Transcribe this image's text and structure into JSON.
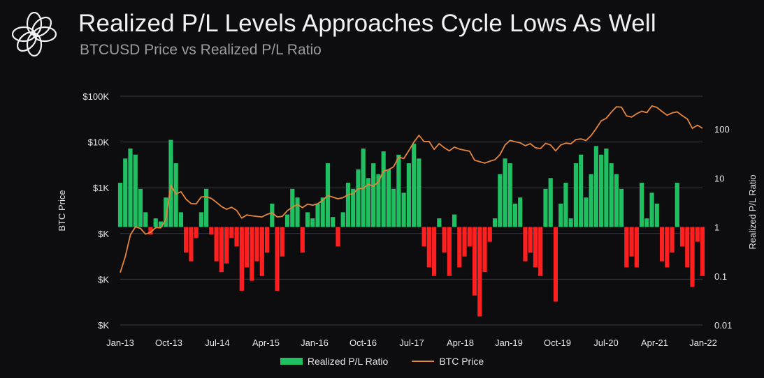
{
  "header": {
    "title": "Realized P/L Levels Approaches Cycle Lows As Well",
    "subtitle": "BTCUSD Price vs Realized P/L Ratio"
  },
  "colors": {
    "background": "#0d0d10",
    "profit": "#1fbf62",
    "loss": "#ff1f1f",
    "price": "#e5853a",
    "grid": "#3a3a40"
  },
  "chart_data": {
    "type": "bar",
    "title": "Realized P/L Levels Approaches Cycle Lows As Well",
    "subtitle": "BTCUSD Price vs Realized P/L Ratio",
    "x_tick_labels": [
      "Jan-13",
      "Oct-13",
      "Jul-14",
      "Apr-15",
      "Jan-16",
      "Oct-16",
      "Jul-17",
      "Apr-18",
      "Jan-19",
      "Oct-19",
      "Jul-20",
      "Apr-21",
      "Jan-22"
    ],
    "x_range": [
      "2013-01",
      "2022-08"
    ],
    "left_axis": {
      "label": "BTC Price",
      "scale": "log",
      "tick_labels": [
        "$100K",
        "$10K",
        "$1K",
        "$K",
        "$K",
        "$K"
      ]
    },
    "right_axis": {
      "label": "Realized P/L Ratio",
      "scale": "log",
      "tick_labels": [
        "100",
        "10",
        "1",
        "0.1",
        "0.01"
      ],
      "ylim": [
        0.01,
        200
      ]
    },
    "grid": true,
    "legend_position": "bottom",
    "series": [
      {
        "name": "Realized P/L Ratio",
        "kind": "bar",
        "axis": "right",
        "color": "#1fbf62",
        "negative_color": "#ff1f1f",
        "points": [
          [
            "2013-01",
            8
          ],
          [
            "2013-02",
            25
          ],
          [
            "2013-03",
            40
          ],
          [
            "2013-04",
            30
          ],
          [
            "2013-05",
            6
          ],
          [
            "2013-06",
            2
          ],
          [
            "2013-07",
            0.7
          ],
          [
            "2013-08",
            1.5
          ],
          [
            "2013-09",
            1.3
          ],
          [
            "2013-10",
            4
          ],
          [
            "2013-11",
            60
          ],
          [
            "2013-12",
            20
          ],
          [
            "2014-01",
            2
          ],
          [
            "2014-02",
            0.3
          ],
          [
            "2014-03",
            0.2
          ],
          [
            "2014-04",
            0.6
          ],
          [
            "2014-05",
            2
          ],
          [
            "2014-06",
            6
          ],
          [
            "2014-07",
            0.7
          ],
          [
            "2014-08",
            0.2
          ],
          [
            "2014-09",
            0.12
          ],
          [
            "2014-10",
            0.18
          ],
          [
            "2014-11",
            0.6
          ],
          [
            "2014-12",
            0.4
          ],
          [
            "2015-01",
            0.05
          ],
          [
            "2015-02",
            0.15
          ],
          [
            "2015-03",
            0.08
          ],
          [
            "2015-04",
            0.2
          ],
          [
            "2015-05",
            0.1
          ],
          [
            "2015-06",
            0.3
          ],
          [
            "2015-07",
            3
          ],
          [
            "2015-08",
            0.05
          ],
          [
            "2015-09",
            0.25
          ],
          [
            "2015-10",
            1.8
          ],
          [
            "2015-11",
            6
          ],
          [
            "2015-12",
            4
          ],
          [
            "2016-01",
            0.3
          ],
          [
            "2016-02",
            2
          ],
          [
            "2016-03",
            1.5
          ],
          [
            "2016-04",
            3
          ],
          [
            "2016-05",
            4
          ],
          [
            "2016-06",
            20
          ],
          [
            "2016-07",
            1.6
          ],
          [
            "2016-08",
            0.4
          ],
          [
            "2016-09",
            2
          ],
          [
            "2016-10",
            8
          ],
          [
            "2016-11",
            6
          ],
          [
            "2016-12",
            15
          ],
          [
            "2017-01",
            40
          ],
          [
            "2017-02",
            10
          ],
          [
            "2017-03",
            20
          ],
          [
            "2017-04",
            12
          ],
          [
            "2017-05",
            35
          ],
          [
            "2017-06",
            15
          ],
          [
            "2017-07",
            6
          ],
          [
            "2017-08",
            30
          ],
          [
            "2017-09",
            5
          ],
          [
            "2017-10",
            20
          ],
          [
            "2017-11",
            50
          ],
          [
            "2017-12",
            25
          ],
          [
            "2018-01",
            0.4
          ],
          [
            "2018-02",
            0.15
          ],
          [
            "2018-03",
            0.1
          ],
          [
            "2018-04",
            1.5
          ],
          [
            "2018-05",
            0.3
          ],
          [
            "2018-06",
            0.1
          ],
          [
            "2018-07",
            1.8
          ],
          [
            "2018-08",
            0.15
          ],
          [
            "2018-09",
            0.25
          ],
          [
            "2018-10",
            0.4
          ],
          [
            "2018-11",
            0.04
          ],
          [
            "2018-12",
            0.015
          ],
          [
            "2019-01",
            0.12
          ],
          [
            "2019-02",
            0.5
          ],
          [
            "2019-03",
            1.5
          ],
          [
            "2019-04",
            12
          ],
          [
            "2019-05",
            25
          ],
          [
            "2019-06",
            20
          ],
          [
            "2019-07",
            3
          ],
          [
            "2019-08",
            4
          ],
          [
            "2019-09",
            0.2
          ],
          [
            "2019-10",
            0.3
          ],
          [
            "2019-11",
            0.15
          ],
          [
            "2019-12",
            0.1
          ],
          [
            "2020-01",
            6
          ],
          [
            "2020-02",
            10
          ],
          [
            "2020-03",
            0.03
          ],
          [
            "2020-04",
            3
          ],
          [
            "2020-05",
            8
          ],
          [
            "2020-06",
            1.5
          ],
          [
            "2020-07",
            20
          ],
          [
            "2020-08",
            30
          ],
          [
            "2020-09",
            4
          ],
          [
            "2020-10",
            12
          ],
          [
            "2020-11",
            45
          ],
          [
            "2020-12",
            30
          ],
          [
            "2021-01",
            40
          ],
          [
            "2021-02",
            20
          ],
          [
            "2021-03",
            12
          ],
          [
            "2021-04",
            6
          ],
          [
            "2021-05",
            0.15
          ],
          [
            "2021-06",
            0.25
          ],
          [
            "2021-07",
            0.15
          ],
          [
            "2021-08",
            8
          ],
          [
            "2021-09",
            1.5
          ],
          [
            "2021-10",
            5
          ],
          [
            "2021-11",
            3
          ],
          [
            "2021-12",
            0.2
          ],
          [
            "2022-01",
            0.15
          ],
          [
            "2022-02",
            0.3
          ],
          [
            "2022-03",
            8
          ],
          [
            "2022-04",
            0.4
          ],
          [
            "2022-05",
            0.15
          ],
          [
            "2022-06",
            0.06
          ],
          [
            "2022-07",
            0.5
          ],
          [
            "2022-08",
            0.1
          ]
        ]
      },
      {
        "name": "BTC Price",
        "kind": "line",
        "axis": "left",
        "color": "#e5853a",
        "points": [
          [
            "2013-01",
            14
          ],
          [
            "2013-02",
            31
          ],
          [
            "2013-03",
            93
          ],
          [
            "2013-04",
            139
          ],
          [
            "2013-05",
            129
          ],
          [
            "2013-06",
            97
          ],
          [
            "2013-07",
            106
          ],
          [
            "2013-08",
            135
          ],
          [
            "2013-09",
            133
          ],
          [
            "2013-10",
            203
          ],
          [
            "2013-11",
            1130
          ],
          [
            "2013-12",
            730
          ],
          [
            "2014-01",
            820
          ],
          [
            "2014-02",
            560
          ],
          [
            "2014-03",
            450
          ],
          [
            "2014-04",
            445
          ],
          [
            "2014-05",
            630
          ],
          [
            "2014-06",
            640
          ],
          [
            "2014-07",
            585
          ],
          [
            "2014-08",
            480
          ],
          [
            "2014-09",
            387
          ],
          [
            "2014-10",
            338
          ],
          [
            "2014-11",
            376
          ],
          [
            "2014-12",
            320
          ],
          [
            "2015-01",
            217
          ],
          [
            "2015-02",
            254
          ],
          [
            "2015-03",
            244
          ],
          [
            "2015-04",
            236
          ],
          [
            "2015-05",
            230
          ],
          [
            "2015-06",
            263
          ],
          [
            "2015-07",
            284
          ],
          [
            "2015-08",
            230
          ],
          [
            "2015-09",
            236
          ],
          [
            "2015-10",
            314
          ],
          [
            "2015-11",
            377
          ],
          [
            "2015-12",
            430
          ],
          [
            "2016-01",
            368
          ],
          [
            "2016-02",
            436
          ],
          [
            "2016-03",
            416
          ],
          [
            "2016-04",
            448
          ],
          [
            "2016-05",
            531
          ],
          [
            "2016-06",
            673
          ],
          [
            "2016-07",
            624
          ],
          [
            "2016-08",
            575
          ],
          [
            "2016-09",
            608
          ],
          [
            "2016-10",
            701
          ],
          [
            "2016-11",
            742
          ],
          [
            "2016-12",
            963
          ],
          [
            "2017-01",
            970
          ],
          [
            "2017-02",
            1190
          ],
          [
            "2017-03",
            1080
          ],
          [
            "2017-04",
            1350
          ],
          [
            "2017-05",
            2300
          ],
          [
            "2017-06",
            2480
          ],
          [
            "2017-07",
            2880
          ],
          [
            "2017-08",
            4700
          ],
          [
            "2017-09",
            4340
          ],
          [
            "2017-10",
            6470
          ],
          [
            "2017-11",
            9900
          ],
          [
            "2017-12",
            14000
          ],
          [
            "2018-01",
            10200
          ],
          [
            "2018-02",
            10300
          ],
          [
            "2018-03",
            6900
          ],
          [
            "2018-04",
            9240
          ],
          [
            "2018-05",
            7500
          ],
          [
            "2018-06",
            6400
          ],
          [
            "2018-07",
            7730
          ],
          [
            "2018-08",
            7000
          ],
          [
            "2018-09",
            6600
          ],
          [
            "2018-10",
            6300
          ],
          [
            "2018-11",
            4000
          ],
          [
            "2018-12",
            3700
          ],
          [
            "2019-01",
            3450
          ],
          [
            "2019-02",
            3800
          ],
          [
            "2019-03",
            4100
          ],
          [
            "2019-04",
            5300
          ],
          [
            "2019-05",
            8600
          ],
          [
            "2019-06",
            10800
          ],
          [
            "2019-07",
            10100
          ],
          [
            "2019-08",
            9600
          ],
          [
            "2019-09",
            8300
          ],
          [
            "2019-10",
            9200
          ],
          [
            "2019-11",
            7500
          ],
          [
            "2019-12",
            7200
          ],
          [
            "2020-01",
            9350
          ],
          [
            "2020-02",
            8600
          ],
          [
            "2020-03",
            6400
          ],
          [
            "2020-04",
            8600
          ],
          [
            "2020-05",
            9450
          ],
          [
            "2020-06",
            9140
          ],
          [
            "2020-07",
            11300
          ],
          [
            "2020-08",
            11650
          ],
          [
            "2020-09",
            10780
          ],
          [
            "2020-10",
            13800
          ],
          [
            "2020-11",
            19700
          ],
          [
            "2020-12",
            29000
          ],
          [
            "2021-01",
            33100
          ],
          [
            "2021-02",
            45100
          ],
          [
            "2021-03",
            58800
          ],
          [
            "2021-04",
            57700
          ],
          [
            "2021-05",
            37300
          ],
          [
            "2021-06",
            35000
          ],
          [
            "2021-07",
            41500
          ],
          [
            "2021-08",
            47100
          ],
          [
            "2021-09",
            43800
          ],
          [
            "2021-10",
            61300
          ],
          [
            "2021-11",
            57000
          ],
          [
            "2021-12",
            46300
          ],
          [
            "2022-01",
            38500
          ],
          [
            "2022-02",
            43200
          ],
          [
            "2022-03",
            45500
          ],
          [
            "2022-04",
            37700
          ],
          [
            "2022-05",
            31800
          ],
          [
            "2022-06",
            19900
          ],
          [
            "2022-07",
            23300
          ],
          [
            "2022-08",
            20000
          ]
        ]
      }
    ]
  }
}
